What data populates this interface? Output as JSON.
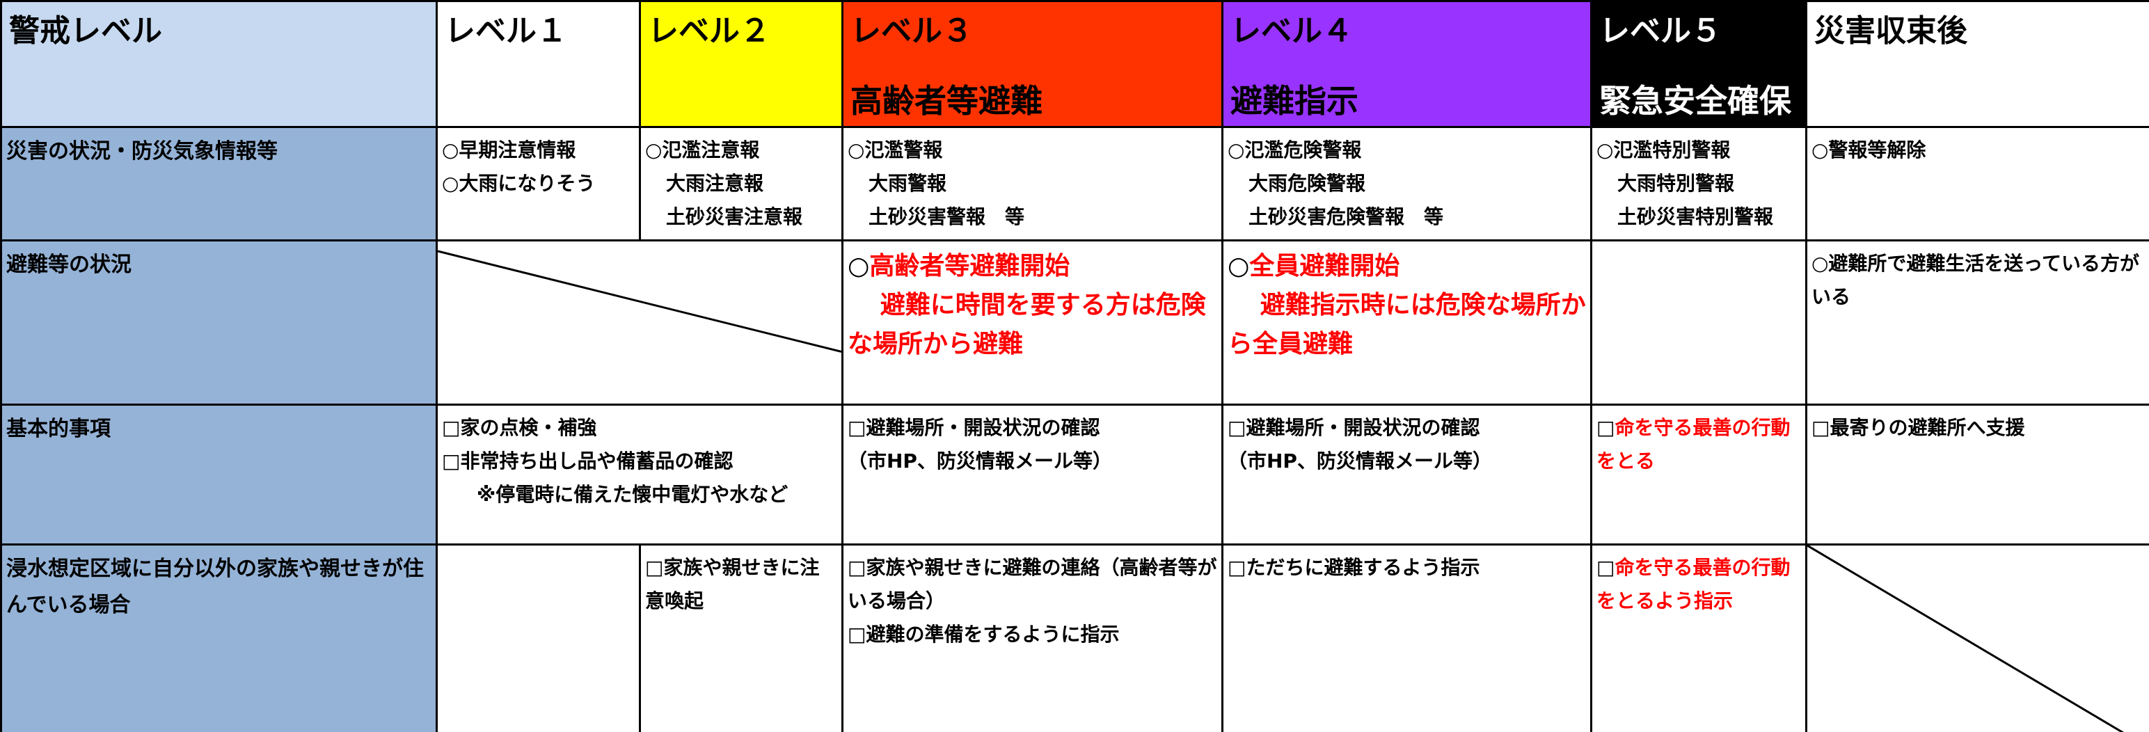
{
  "header": {
    "title": "警戒レベル",
    "levels": [
      "レベル１",
      "レベル２",
      "レベル３",
      "レベル４",
      "レベル５",
      "災害収束後"
    ],
    "actions": [
      "高齢者等避難",
      "避難指示",
      "緊急安全確保"
    ]
  },
  "rows": [
    {
      "label": "災害の状況・防災気象情報等",
      "cells": [
        [
          "○早期注意情報",
          "○大雨になりそう"
        ],
        [
          "○氾濫注意報",
          "大雨注意報",
          "土砂災害注意報"
        ],
        [
          "○氾濫警報",
          "大雨警報",
          "土砂災害警報　等"
        ],
        [
          "○氾濫危険警報",
          "大雨危険警報",
          "土砂災害危険警報　等"
        ],
        [
          "○氾濫特別警報",
          "大雨特別警報",
          "土砂災害特別警報"
        ],
        [
          "○警報等解除"
        ]
      ]
    },
    {
      "label": "避難等の状況",
      "cells": [
        [],
        [
          "○",
          "高齢者等避難開始",
          "避難に時間を要する方は危険な場所から避難"
        ],
        [
          "○",
          "全員避難開始",
          "避難指示時には危険な場所から全員避難"
        ],
        [],
        [
          "○避難所で避難生活を送っている方がいる"
        ]
      ]
    },
    {
      "label": "基本的事項",
      "cells": [
        [
          "□家の点検・補強",
          "□非常持ち出し品や備蓄品の確認",
          "※停電時に備えた懐中電灯や水など"
        ],
        [
          "□避難場所・開設状況の確認",
          "（市HP、防災情報メール等）"
        ],
        [
          "□避難場所・開設状況の確認",
          "（市HP、防災情報メール等）"
        ],
        [
          "□",
          "命を守る最善の行動をとる"
        ],
        [
          "□最寄りの避難所へ支援"
        ]
      ]
    },
    {
      "label": "浸水想定区域に自分以外の家族や親せきが住んでいる場合",
      "cells": [
        [],
        [
          "□家族や親せきに注意喚起"
        ],
        [
          "□家族や親せきに避難の連絡（高齢者等がいる場合）",
          "□避難の準備をするように指示"
        ],
        [
          "□ただちに避難するよう指示"
        ],
        [
          "□",
          "命を守る最善の行動をとるよう指示"
        ],
        []
      ]
    }
  ]
}
